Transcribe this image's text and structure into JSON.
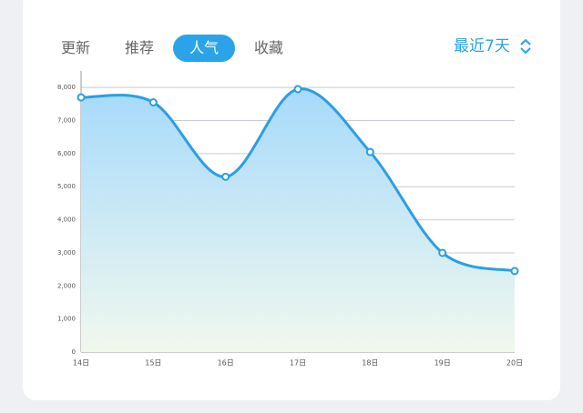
{
  "tabs": [
    "更新",
    "推荐",
    "人气",
    "收藏"
  ],
  "active_tab": 2,
  "range_label": "最近7天",
  "chart_data": {
    "type": "line",
    "categories": [
      "14日",
      "15日",
      "16日",
      "17日",
      "18日",
      "19日",
      "20日"
    ],
    "series": [
      {
        "name": "人气",
        "color": "#2b9fe3",
        "values": [
          7700,
          7550,
          5300,
          7950,
          6050,
          3000,
          2450
        ]
      }
    ],
    "ylim": [
      0,
      8500
    ],
    "yticks": [
      0,
      {
        "value": 1000,
        "label": "1,000"
      },
      {
        "value": 2000,
        "label": "2,000"
      },
      {
        "value": 3000,
        "label": "3,000"
      },
      {
        "value": 4000,
        "label": "4,000"
      },
      {
        "value": 5000,
        "label": "5,000"
      },
      {
        "value": 6000,
        "label": "6,000"
      },
      {
        "value": 7000,
        "label": "7,000"
      },
      {
        "value": 8000,
        "label": "8,000"
      }
    ],
    "grid": true,
    "smooth": true,
    "area": true
  }
}
